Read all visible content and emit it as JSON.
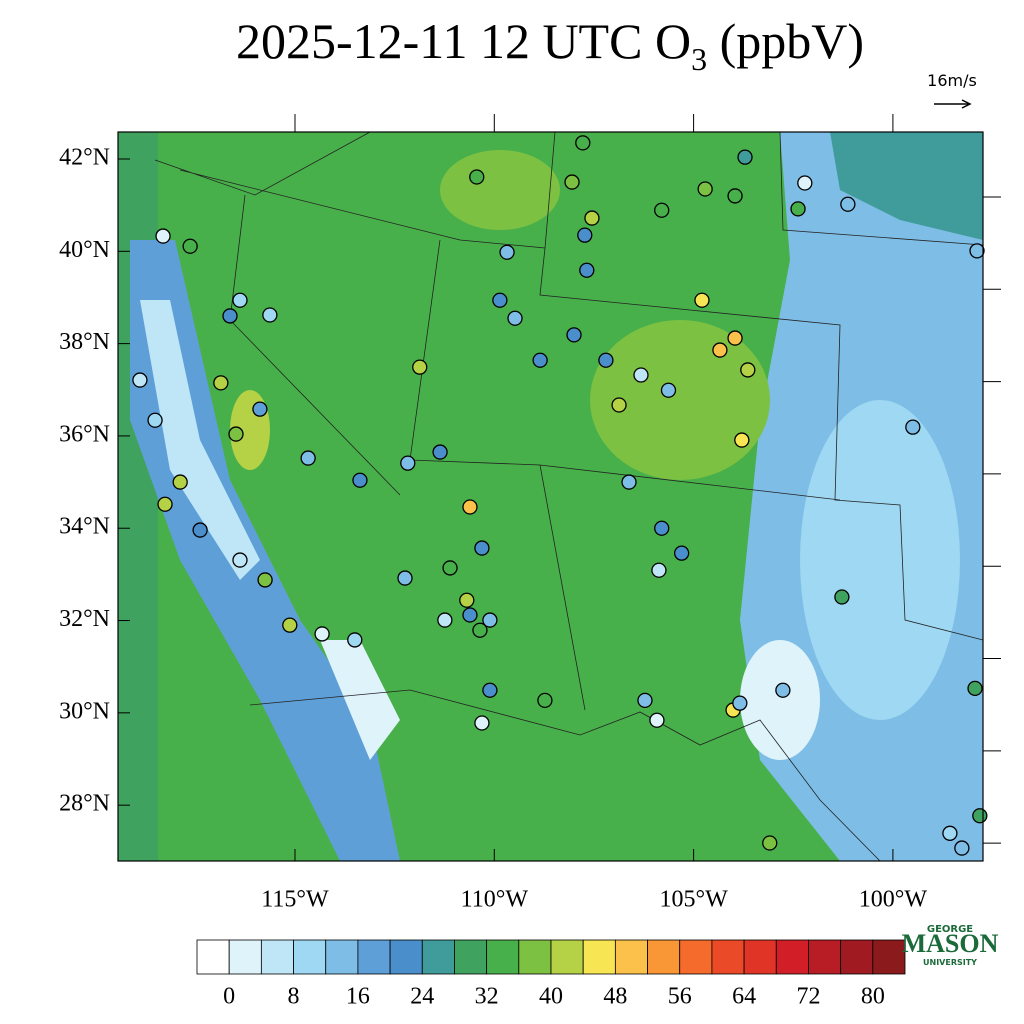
{
  "title": {
    "before": "2025-12-11 12 UTC O",
    "subscript": "3",
    "after": " (ppbV)"
  },
  "wind_reference": "16m/s",
  "lonlim": [
    -119.44,
    -97.74
  ],
  "latlim": [
    26.79,
    42.585
  ],
  "lonticks": [
    {
      "value": -115,
      "label": "115°W"
    },
    {
      "value": -110,
      "label": "110°W"
    },
    {
      "value": -105,
      "label": "105°W"
    },
    {
      "value": -100,
      "label": "100°W"
    }
  ],
  "latticks": [
    {
      "value": 42,
      "label": "42°N"
    },
    {
      "value": 40,
      "label": "40°N"
    },
    {
      "value": 38,
      "label": "38°N"
    },
    {
      "value": 36,
      "label": "36°N"
    },
    {
      "value": 34,
      "label": "34°N"
    },
    {
      "value": 32,
      "label": "32°N"
    },
    {
      "value": 30,
      "label": "30°N"
    },
    {
      "value": 28,
      "label": "28°N"
    }
  ],
  "colorbar": {
    "ticks": [
      0,
      8,
      16,
      24,
      32,
      40,
      48,
      56,
      64,
      72,
      80
    ],
    "step": 4,
    "colors": [
      "#ffffff",
      "#dff3fb",
      "#bfe6f7",
      "#9ed8f2",
      "#7ebde6",
      "#5f9fd8",
      "#4a8ecb",
      "#3f9c9a",
      "#3fa35f",
      "#48b04a",
      "#7dc143",
      "#b5d145",
      "#f7e553",
      "#fbc14a",
      "#f99736",
      "#f46b2b",
      "#ea4a27",
      "#e03426",
      "#d21f27",
      "#b81c25",
      "#a01a22",
      "#8b1a1c"
    ]
  },
  "stations": [
    {
      "lon": -118.31,
      "lat": 40.33,
      "value": 1
    },
    {
      "lon": -117.63,
      "lat": 40.11,
      "value": 34
    },
    {
      "lon": -116.38,
      "lat": 38.94,
      "value": 10
    },
    {
      "lon": -116.63,
      "lat": 38.6,
      "value": 20
    },
    {
      "lon": -115.63,
      "lat": 38.62,
      "value": 10
    },
    {
      "lon": -116.86,
      "lat": 37.15,
      "value": 40
    },
    {
      "lon": -115.88,
      "lat": 36.58,
      "value": 18
    },
    {
      "lon": -116.48,
      "lat": 36.04,
      "value": 36
    },
    {
      "lon": -118.51,
      "lat": 36.34,
      "value": 10
    },
    {
      "lon": -118.89,
      "lat": 37.21,
      "value": 4
    },
    {
      "lon": -118.26,
      "lat": 34.52,
      "value": 40
    },
    {
      "lon": -117.88,
      "lat": 35.0,
      "value": 42
    },
    {
      "lon": -117.38,
      "lat": 33.96,
      "value": 22
    },
    {
      "lon": -116.38,
      "lat": 33.31,
      "value": 4
    },
    {
      "lon": -115.75,
      "lat": 32.88,
      "value": 36
    },
    {
      "lon": -115.13,
      "lat": 31.9,
      "value": 42
    },
    {
      "lon": -114.32,
      "lat": 31.71,
      "value": 1
    },
    {
      "lon": -113.5,
      "lat": 31.58,
      "value": 10
    },
    {
      "lon": -114.67,
      "lat": 35.52,
      "value": 12
    },
    {
      "lon": -113.37,
      "lat": 35.04,
      "value": 20
    },
    {
      "lon": -112.17,
      "lat": 35.41,
      "value": 12
    },
    {
      "lon": -111.36,
      "lat": 35.65,
      "value": 20
    },
    {
      "lon": -110.61,
      "lat": 34.46,
      "value": 48
    },
    {
      "lon": -110.44,
      "lat": 41.61,
      "value": 34
    },
    {
      "lon": -111.87,
      "lat": 37.49,
      "value": 40
    },
    {
      "lon": -109.68,
      "lat": 39.98,
      "value": 12
    },
    {
      "lon": -109.86,
      "lat": 38.94,
      "value": 20
    },
    {
      "lon": -109.48,
      "lat": 38.55,
      "value": 12
    },
    {
      "lon": -108.85,
      "lat": 37.64,
      "value": 20
    },
    {
      "lon": -107.78,
      "lat": 42.35,
      "value": 34
    },
    {
      "lon": -108.05,
      "lat": 41.5,
      "value": 36
    },
    {
      "lon": -107.73,
      "lat": 40.35,
      "value": 22
    },
    {
      "lon": -107.55,
      "lat": 40.72,
      "value": 40
    },
    {
      "lon": -107.68,
      "lat": 39.59,
      "value": 20
    },
    {
      "lon": -108.0,
      "lat": 38.19,
      "value": 22
    },
    {
      "lon": -107.2,
      "lat": 37.64,
      "value": 22
    },
    {
      "lon": -106.32,
      "lat": 37.32,
      "value": 4
    },
    {
      "lon": -105.63,
      "lat": 36.99,
      "value": 12
    },
    {
      "lon": -104.79,
      "lat": 38.94,
      "value": 44
    },
    {
      "lon": -103.96,
      "lat": 38.12,
      "value": 48
    },
    {
      "lon": -104.34,
      "lat": 37.86,
      "value": 48
    },
    {
      "lon": -103.64,
      "lat": 37.43,
      "value": 40
    },
    {
      "lon": -103.79,
      "lat": 35.91,
      "value": 44
    },
    {
      "lon": -106.87,
      "lat": 36.67,
      "value": 40
    },
    {
      "lon": -106.62,
      "lat": 35.0,
      "value": 12
    },
    {
      "lon": -105.8,
      "lat": 34.0,
      "value": 20
    },
    {
      "lon": -105.3,
      "lat": 33.46,
      "value": 22
    },
    {
      "lon": -105.87,
      "lat": 33.09,
      "value": 4
    },
    {
      "lon": -103.71,
      "lat": 42.04,
      "value": 24
    },
    {
      "lon": -103.96,
      "lat": 41.2,
      "value": 34
    },
    {
      "lon": -104.71,
      "lat": 41.35,
      "value": 36
    },
    {
      "lon": -105.8,
      "lat": 40.89,
      "value": 32
    },
    {
      "lon": -102.21,
      "lat": 41.48,
      "value": 1
    },
    {
      "lon": -101.13,
      "lat": 41.02,
      "value": 12
    },
    {
      "lon": -102.38,
      "lat": 40.92,
      "value": 32
    },
    {
      "lon": -97.89,
      "lat": 40.01,
      "value": 12
    },
    {
      "lon": -99.5,
      "lat": 36.19,
      "value": 12
    },
    {
      "lon": -101.28,
      "lat": 32.51,
      "value": 28
    },
    {
      "lon": -102.76,
      "lat": 30.49,
      "value": 12
    },
    {
      "lon": -104.01,
      "lat": 30.06,
      "value": 44
    },
    {
      "lon": -103.84,
      "lat": 30.21,
      "value": 12
    },
    {
      "lon": -103.09,
      "lat": 27.18,
      "value": 36
    },
    {
      "lon": -98.57,
      "lat": 27.39,
      "value": 10
    },
    {
      "lon": -98.27,
      "lat": 27.07,
      "value": 12
    },
    {
      "lon": -105.92,
      "lat": 29.84,
      "value": 1
    },
    {
      "lon": -106.22,
      "lat": 30.27,
      "value": 12
    },
    {
      "lon": -108.73,
      "lat": 30.27,
      "value": 34
    },
    {
      "lon": -110.31,
      "lat": 29.78,
      "value": 1
    },
    {
      "lon": -110.11,
      "lat": 30.49,
      "value": 20
    },
    {
      "lon": -110.69,
      "lat": 32.44,
      "value": 40
    },
    {
      "lon": -110.61,
      "lat": 32.12,
      "value": 20
    },
    {
      "lon": -111.24,
      "lat": 32.01,
      "value": 4
    },
    {
      "lon": -110.11,
      "lat": 32.01,
      "value": 12
    },
    {
      "lon": -110.36,
      "lat": 31.79,
      "value": 34
    },
    {
      "lon": -112.24,
      "lat": 32.92,
      "value": 12
    },
    {
      "lon": -111.11,
      "lat": 33.14,
      "value": 34
    },
    {
      "lon": -110.31,
      "lat": 33.57,
      "value": 20
    },
    {
      "lon": -97.94,
      "lat": 30.53,
      "value": 28
    },
    {
      "lon": -97.82,
      "lat": 27.77,
      "value": 28
    }
  ],
  "logo": {
    "top": "GEORGE",
    "main": "MASON",
    "bottom": "UNIVERSITY"
  }
}
